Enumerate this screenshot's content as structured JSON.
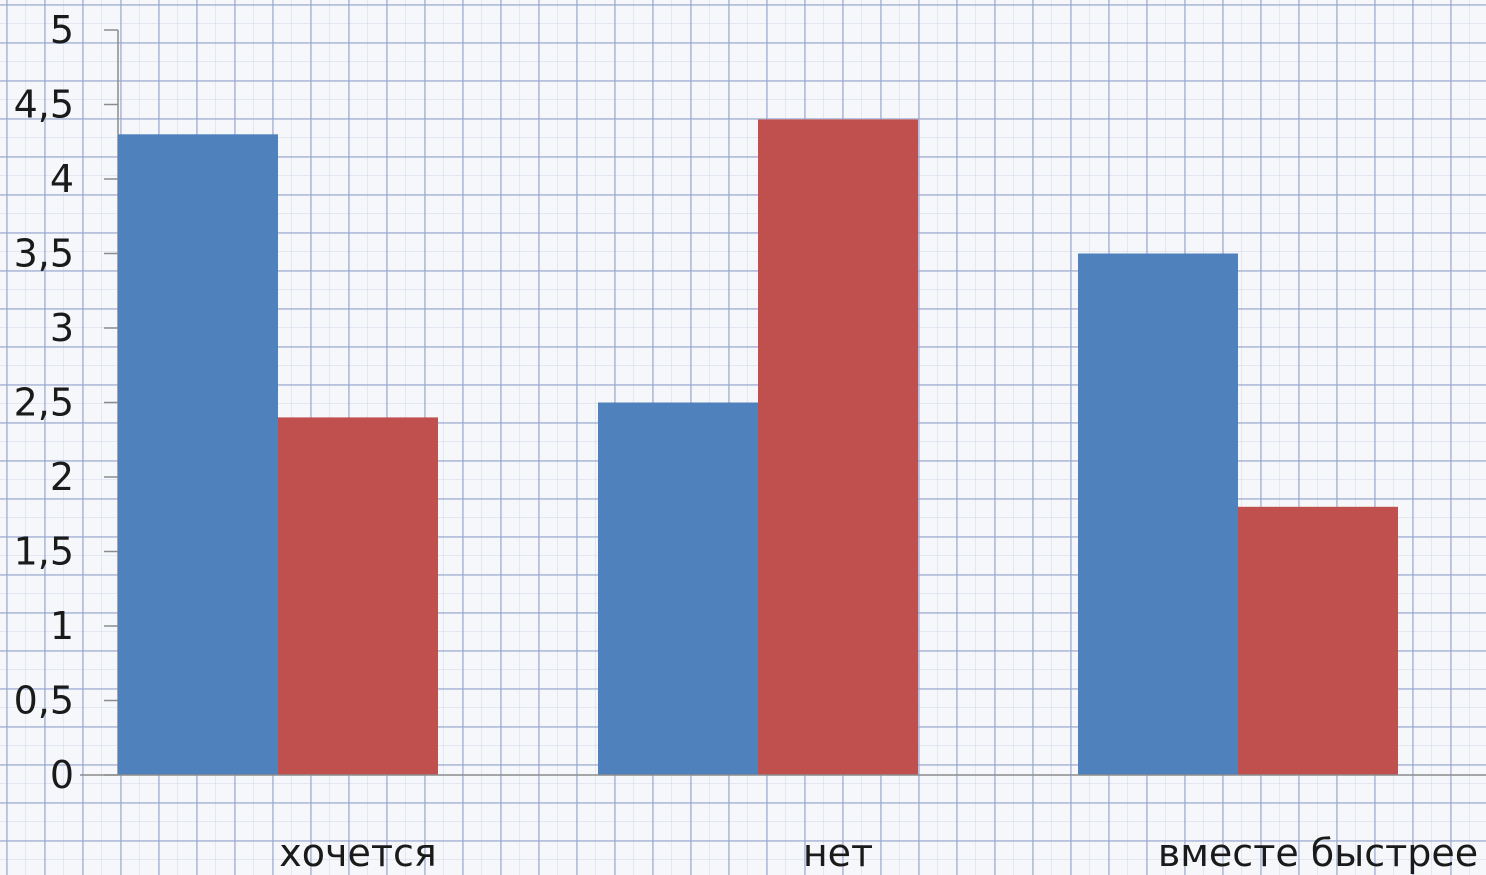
{
  "chart_data": {
    "type": "bar",
    "categories": [
      "хочется",
      "нет",
      "вместе быстрее"
    ],
    "series": [
      {
        "values": [
          4.3,
          2.5,
          3.5
        ],
        "color": "#4f81bd"
      },
      {
        "values": [
          2.4,
          4.4,
          1.8
        ],
        "color": "#c0504d"
      }
    ],
    "ylim": [
      0,
      5
    ],
    "yticks": [
      0,
      0.5,
      1,
      1.5,
      2,
      2.5,
      3,
      3.5,
      4,
      4.5,
      5
    ],
    "ytick_labels": [
      "0",
      "0,5",
      "1",
      "1,5",
      "2",
      "2,5",
      "3",
      "3,5",
      "4",
      "4,5",
      "5"
    ],
    "title": "",
    "xlabel": "",
    "ylabel": "",
    "grid": false,
    "legend": "none",
    "background": "graph-paper"
  }
}
